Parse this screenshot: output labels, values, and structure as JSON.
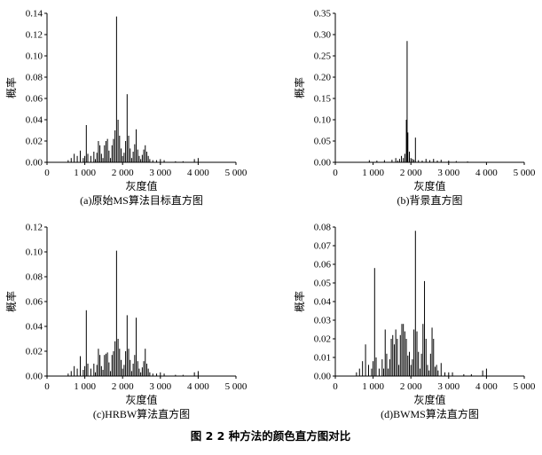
{
  "figure_caption": "图 2   2 种方法的颜色直方图对比",
  "chart_data": [
    {
      "type": "bar",
      "caption": "(a)原始MS算法目标直方图",
      "xlabel": "灰度值",
      "ylabel": "概率",
      "xlim": [
        0,
        5000
      ],
      "ylim": [
        0,
        0.14
      ],
      "xticks": [
        "0",
        "1 000",
        "2 000",
        "3 000",
        "4 000",
        "5 000"
      ],
      "yticks": [
        "0.00",
        "0.02",
        "0.04",
        "0.06",
        "0.08",
        "0.10",
        "0.12",
        "0.14"
      ],
      "x": [
        560,
        640,
        720,
        800,
        880,
        960,
        1000,
        1040,
        1080,
        1160,
        1240,
        1280,
        1320,
        1360,
        1400,
        1440,
        1480,
        1520,
        1560,
        1600,
        1640,
        1680,
        1720,
        1760,
        1800,
        1840,
        1880,
        1920,
        1960,
        2000,
        2040,
        2080,
        2120,
        2160,
        2200,
        2240,
        2280,
        2320,
        2360,
        2400,
        2440,
        2480,
        2520,
        2560,
        2600,
        2640,
        2680,
        2720,
        2800,
        2900,
        3000,
        3100,
        3400,
        3600,
        3900,
        4000
      ],
      "values": [
        0.002,
        0.004,
        0.008,
        0.006,
        0.011,
        0.004,
        0.006,
        0.035,
        0.008,
        0.006,
        0.01,
        0.003,
        0.009,
        0.02,
        0.016,
        0.008,
        0.004,
        0.016,
        0.02,
        0.022,
        0.011,
        0.004,
        0.016,
        0.022,
        0.03,
        0.137,
        0.04,
        0.025,
        0.013,
        0.006,
        0.009,
        0.02,
        0.064,
        0.025,
        0.013,
        0.004,
        0.01,
        0.017,
        0.031,
        0.012,
        0.006,
        0.003,
        0.007,
        0.012,
        0.016,
        0.01,
        0.006,
        0.003,
        0.002,
        0.002,
        0.003,
        0.002,
        0.001,
        0.001,
        0.003,
        0.004
      ]
    },
    {
      "type": "bar",
      "caption": "(b)背景直方图",
      "xlabel": "灰度值",
      "ylabel": "概率",
      "xlim": [
        0,
        5000
      ],
      "ylim": [
        0,
        0.35
      ],
      "xticks": [
        "0",
        "1 000",
        "2 000",
        "3 000",
        "4 000",
        "5 000"
      ],
      "yticks": [
        "0.00",
        "0.05",
        "0.10",
        "0.15",
        "0.20",
        "0.25",
        "0.30",
        "0.35"
      ],
      "x": [
        900,
        1100,
        1300,
        1500,
        1600,
        1650,
        1700,
        1750,
        1800,
        1840,
        1880,
        1900,
        1920,
        1960,
        2000,
        2040,
        2080,
        2120,
        2200,
        2300,
        2400,
        2500,
        2600,
        2700,
        2800,
        3000,
        3200,
        3500
      ],
      "values": [
        0.005,
        0.004,
        0.005,
        0.006,
        0.01,
        0.004,
        0.008,
        0.015,
        0.01,
        0.02,
        0.1,
        0.285,
        0.07,
        0.025,
        0.01,
        0.008,
        0.006,
        0.058,
        0.005,
        0.004,
        0.008,
        0.005,
        0.008,
        0.004,
        0.006,
        0.004,
        0.003,
        0.002
      ]
    },
    {
      "type": "bar",
      "caption": "(c)HRBW算法直方图",
      "xlabel": "灰度值",
      "ylabel": "概率",
      "xlim": [
        0,
        5000
      ],
      "ylim": [
        0,
        0.12
      ],
      "xticks": [
        "0",
        "1 000",
        "2 000",
        "3 000",
        "4 000",
        "5 000"
      ],
      "yticks": [
        "0.00",
        "0.02",
        "0.04",
        "0.06",
        "0.08",
        "0.10",
        "0.12"
      ],
      "x": [
        560,
        640,
        720,
        800,
        880,
        960,
        1000,
        1040,
        1080,
        1160,
        1240,
        1280,
        1320,
        1360,
        1400,
        1440,
        1480,
        1520,
        1560,
        1600,
        1640,
        1680,
        1720,
        1760,
        1800,
        1840,
        1880,
        1920,
        1960,
        2000,
        2040,
        2080,
        2120,
        2160,
        2200,
        2240,
        2280,
        2320,
        2360,
        2400,
        2440,
        2480,
        2520,
        2560,
        2600,
        2640,
        2680,
        2720,
        2800,
        2900,
        3000,
        3100,
        3400,
        3600,
        3900,
        4000
      ],
      "values": [
        0.002,
        0.004,
        0.008,
        0.006,
        0.016,
        0.005,
        0.008,
        0.053,
        0.01,
        0.006,
        0.01,
        0.003,
        0.009,
        0.022,
        0.017,
        0.008,
        0.005,
        0.017,
        0.018,
        0.019,
        0.011,
        0.004,
        0.017,
        0.02,
        0.028,
        0.101,
        0.03,
        0.022,
        0.013,
        0.006,
        0.009,
        0.02,
        0.049,
        0.022,
        0.013,
        0.004,
        0.01,
        0.017,
        0.047,
        0.012,
        0.006,
        0.003,
        0.007,
        0.012,
        0.022,
        0.01,
        0.006,
        0.003,
        0.002,
        0.002,
        0.003,
        0.002,
        0.001,
        0.001,
        0.003,
        0.004
      ]
    },
    {
      "type": "bar",
      "caption": "(d)BWMS算法直方图",
      "xlabel": "灰度值",
      "ylabel": "概率",
      "xlim": [
        0,
        5000
      ],
      "ylim": [
        0,
        0.08
      ],
      "xticks": [
        "0",
        "1 000",
        "2 000",
        "3 000",
        "4 000",
        "5 000"
      ],
      "yticks": [
        "0.00",
        "0.01",
        "0.02",
        "0.03",
        "0.04",
        "0.05",
        "0.06",
        "0.07",
        "0.08"
      ],
      "x": [
        560,
        640,
        720,
        800,
        880,
        960,
        1000,
        1040,
        1080,
        1160,
        1240,
        1280,
        1320,
        1360,
        1400,
        1440,
        1480,
        1520,
        1560,
        1600,
        1640,
        1680,
        1720,
        1760,
        1800,
        1840,
        1880,
        1920,
        1960,
        2000,
        2040,
        2080,
        2120,
        2160,
        2200,
        2240,
        2280,
        2320,
        2360,
        2400,
        2440,
        2480,
        2520,
        2560,
        2600,
        2640,
        2680,
        2720,
        2800,
        2900,
        3000,
        3100,
        3400,
        3600,
        3900,
        4000
      ],
      "values": [
        0.002,
        0.004,
        0.008,
        0.017,
        0.006,
        0.004,
        0.008,
        0.058,
        0.01,
        0.004,
        0.009,
        0.004,
        0.025,
        0.012,
        0.004,
        0.009,
        0.02,
        0.022,
        0.017,
        0.025,
        0.02,
        0.006,
        0.022,
        0.028,
        0.028,
        0.024,
        0.02,
        0.011,
        0.013,
        0.006,
        0.009,
        0.025,
        0.078,
        0.024,
        0.013,
        0.004,
        0.012,
        0.028,
        0.051,
        0.02,
        0.006,
        0.003,
        0.012,
        0.026,
        0.02,
        0.005,
        0.006,
        0.003,
        0.007,
        0.002,
        0.002,
        0.002,
        0.001,
        0.001,
        0.003,
        0.004
      ]
    }
  ]
}
